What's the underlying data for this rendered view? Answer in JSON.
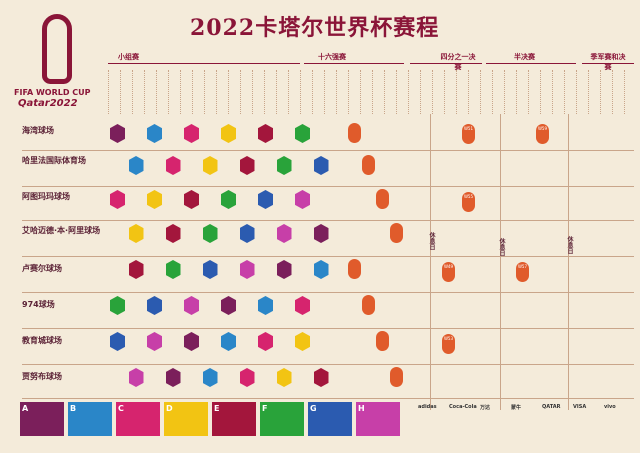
{
  "title": "2022卡塔尔世界杯赛程",
  "logo": {
    "line1": "FIFA WORLD CUP",
    "line2": "Qatar2022"
  },
  "stages": [
    {
      "label": "小组赛"
    },
    {
      "label": "十六强赛"
    },
    {
      "label": "四分之一决赛"
    },
    {
      "label": "半决赛"
    },
    {
      "label": "季军赛和决赛"
    }
  ],
  "venues": [
    {
      "name": "海湾球场"
    },
    {
      "name": "哈里法国际体育场"
    },
    {
      "name": "阿图玛玛球场"
    },
    {
      "name": "艾哈迈德·本·阿里球场"
    },
    {
      "name": "卢赛尔球场"
    },
    {
      "name": "974球场"
    },
    {
      "name": "教育城球场"
    },
    {
      "name": "贾努布球场"
    }
  ],
  "rest_days": [
    "休息日",
    "休息日",
    "休息日"
  ],
  "groups": [
    {
      "letter": "A",
      "color": "#7b1f5b"
    },
    {
      "letter": "B",
      "color": "#2a86c8"
    },
    {
      "letter": "C",
      "color": "#d6246e"
    },
    {
      "letter": "D",
      "color": "#f2c413"
    },
    {
      "letter": "E",
      "color": "#a3163c"
    },
    {
      "letter": "F",
      "color": "#29a33a"
    },
    {
      "letter": "G",
      "color": "#2b5bb0"
    },
    {
      "letter": "H",
      "color": "#c73fa8"
    }
  ],
  "knockout_labels": [
    "W49",
    "W50",
    "W51",
    "W52",
    "W53",
    "W54",
    "W55",
    "W56",
    "W57",
    "W58",
    "W59",
    "W60"
  ],
  "sponsors": [
    "adidas",
    "Coca-Cola",
    "万达",
    "蒙牛",
    "QATAR",
    "VISA",
    "vivo"
  ],
  "colors": {
    "brand": "#8a1538",
    "background": "#f4ebda",
    "knockout": "#e05b2b"
  }
}
